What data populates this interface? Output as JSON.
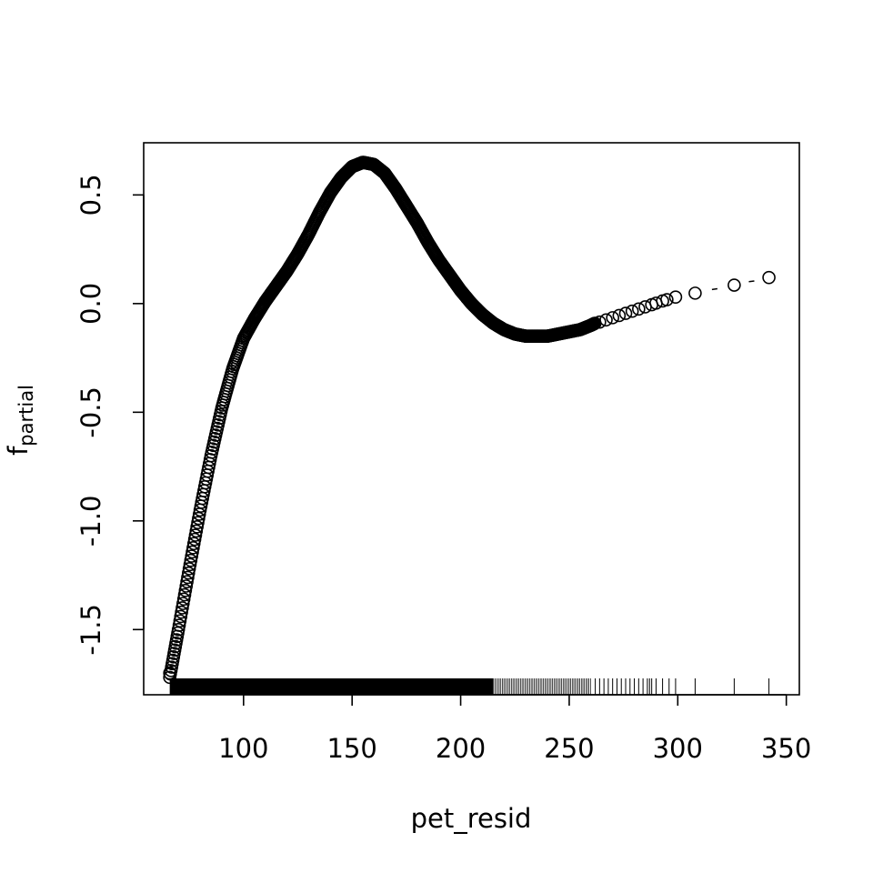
{
  "chart_data": {
    "type": "scatter",
    "xlabel": "pet_resid",
    "ylabel_main": "f",
    "ylabel_sub": "partial",
    "xlim": [
      54,
      356
    ],
    "ylim": [
      -1.8,
      0.74
    ],
    "x_ticks": [
      {
        "value": 100,
        "label": "100"
      },
      {
        "value": 150,
        "label": "150"
      },
      {
        "value": 200,
        "label": "200"
      },
      {
        "value": 250,
        "label": "250"
      },
      {
        "value": 300,
        "label": "300"
      },
      {
        "value": 350,
        "label": "350"
      }
    ],
    "y_ticks": [
      {
        "value": -1.5,
        "label": "-1.5"
      },
      {
        "value": -1.0,
        "label": "-1.0"
      },
      {
        "value": -0.5,
        "label": "-0.5"
      },
      {
        "value": 0.0,
        "label": "0.0"
      },
      {
        "value": 0.5,
        "label": "0.5"
      }
    ],
    "grid": false,
    "dense_curve": {
      "x": [
        66,
        70,
        75,
        80,
        85,
        90,
        95,
        100,
        105,
        110,
        115,
        120,
        125,
        130,
        135,
        140,
        145,
        150,
        155,
        160,
        165,
        170,
        175,
        180,
        185,
        190,
        195,
        200,
        205,
        210,
        215,
        220,
        225,
        230,
        235,
        240,
        245,
        250,
        255,
        260,
        262
      ],
      "y": [
        -1.72,
        -1.5,
        -1.22,
        -0.95,
        -0.7,
        -0.48,
        -0.3,
        -0.16,
        -0.07,
        0.01,
        0.08,
        0.15,
        0.23,
        0.32,
        0.42,
        0.51,
        0.58,
        0.63,
        0.65,
        0.64,
        0.6,
        0.53,
        0.45,
        0.37,
        0.28,
        0.2,
        0.13,
        0.06,
        0.0,
        -0.05,
        -0.09,
        -0.12,
        -0.14,
        -0.15,
        -0.15,
        -0.15,
        -0.14,
        -0.13,
        -0.12,
        -0.1,
        -0.09
      ]
    },
    "sparse_points": {
      "x": [
        66,
        264,
        267,
        270,
        273,
        276,
        279,
        282,
        285,
        288,
        290,
        293,
        295,
        299,
        308,
        326,
        342
      ],
      "y": [
        -1.7,
        -0.085,
        -0.075,
        -0.065,
        -0.055,
        -0.045,
        -0.035,
        -0.025,
        -0.015,
        -0.005,
        0.002,
        0.012,
        0.018,
        0.03,
        0.048,
        0.085,
        0.12
      ]
    },
    "rug": {
      "dense_range": [
        66,
        215
      ],
      "medium_range": [
        215,
        260
      ],
      "sparse_x": [
        262,
        264,
        266,
        268,
        270,
        272,
        274,
        276,
        278,
        280,
        282,
        284,
        286,
        287,
        288,
        290,
        293,
        296,
        299,
        308,
        326,
        342
      ]
    }
  }
}
